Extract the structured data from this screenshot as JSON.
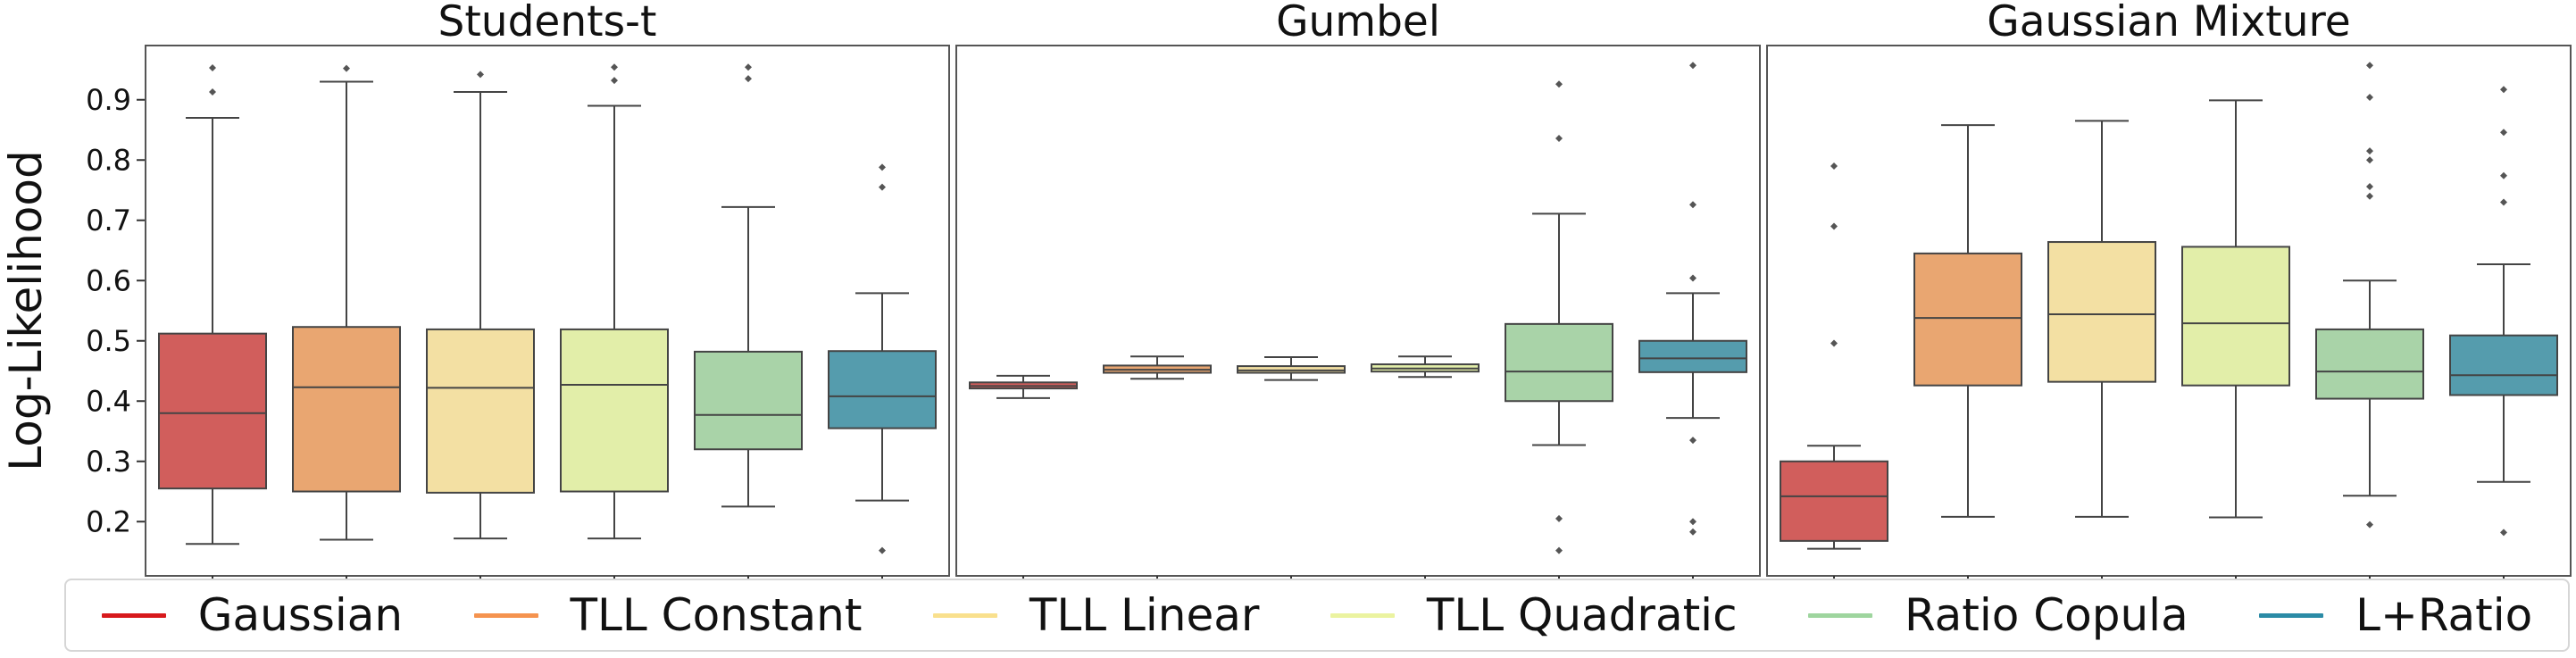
{
  "chart_data": {
    "type": "box",
    "ylabel": "Log-Likelihood",
    "ylim": [
      0.11,
      0.99
    ],
    "yticks": [
      0.2,
      0.3,
      0.4,
      0.5,
      0.6,
      0.7,
      0.8,
      0.9
    ],
    "legend_position": "bottom",
    "series": [
      {
        "name": "Gaussian",
        "color": "#d7191c"
      },
      {
        "name": "TLL Constant",
        "color": "#f5934f"
      },
      {
        "name": "TLL Linear",
        "color": "#f9e08d"
      },
      {
        "name": "TLL Quadratic",
        "color": "#ebf3a0"
      },
      {
        "name": "Ratio Copula",
        "color": "#9ed59e"
      },
      {
        "name": "L+Ratio",
        "color": "#2b8ba6"
      }
    ],
    "box_fill_colors": [
      "#d15e5c",
      "#e9a671",
      "#f3e0a3",
      "#e2eea9",
      "#a9d3a8",
      "#559cad"
    ],
    "panels": [
      {
        "title": "Students-t",
        "boxes": [
          {
            "q1": 0.255,
            "median": 0.38,
            "q3": 0.512,
            "whisker_low": 0.163,
            "whisker_high": 0.87,
            "outliers": [
              0.913,
              0.953
            ]
          },
          {
            "q1": 0.25,
            "median": 0.423,
            "q3": 0.523,
            "whisker_low": 0.17,
            "whisker_high": 0.93,
            "outliers": [
              0.952
            ]
          },
          {
            "q1": 0.248,
            "median": 0.422,
            "q3": 0.519,
            "whisker_low": 0.172,
            "whisker_high": 0.913,
            "outliers": [
              0.942
            ]
          },
          {
            "q1": 0.25,
            "median": 0.427,
            "q3": 0.519,
            "whisker_low": 0.172,
            "whisker_high": 0.89,
            "outliers": [
              0.932,
              0.954
            ]
          },
          {
            "q1": 0.32,
            "median": 0.377,
            "q3": 0.482,
            "whisker_low": 0.225,
            "whisker_high": 0.722,
            "outliers": [
              0.935,
              0.954
            ]
          },
          {
            "q1": 0.355,
            "median": 0.408,
            "q3": 0.483,
            "whisker_low": 0.235,
            "whisker_high": 0.579,
            "outliers": [
              0.152,
              0.755,
              0.788
            ]
          }
        ]
      },
      {
        "title": "Gumbel",
        "boxes": [
          {
            "q1": 0.421,
            "median": 0.425,
            "q3": 0.431,
            "whisker_low": 0.405,
            "whisker_high": 0.442,
            "outliers": []
          },
          {
            "q1": 0.447,
            "median": 0.452,
            "q3": 0.459,
            "whisker_low": 0.437,
            "whisker_high": 0.474,
            "outliers": []
          },
          {
            "q1": 0.447,
            "median": 0.451,
            "q3": 0.458,
            "whisker_low": 0.435,
            "whisker_high": 0.473,
            "outliers": []
          },
          {
            "q1": 0.449,
            "median": 0.454,
            "q3": 0.461,
            "whisker_low": 0.44,
            "whisker_high": 0.474,
            "outliers": []
          },
          {
            "q1": 0.4,
            "median": 0.449,
            "q3": 0.528,
            "whisker_low": 0.327,
            "whisker_high": 0.711,
            "outliers": [
              0.152,
              0.205,
              0.836,
              0.926
            ]
          },
          {
            "q1": 0.448,
            "median": 0.471,
            "q3": 0.5,
            "whisker_low": 0.372,
            "whisker_high": 0.579,
            "outliers": [
              0.183,
              0.2,
              0.335,
              0.604,
              0.726,
              0.957
            ]
          }
        ]
      },
      {
        "title": "Gaussian Mixture",
        "boxes": [
          {
            "q1": 0.168,
            "median": 0.242,
            "q3": 0.3,
            "whisker_low": 0.155,
            "whisker_high": 0.326,
            "outliers": [
              0.496,
              0.69,
              0.79
            ]
          },
          {
            "q1": 0.426,
            "median": 0.538,
            "q3": 0.645,
            "whisker_low": 0.208,
            "whisker_high": 0.858,
            "outliers": []
          },
          {
            "q1": 0.432,
            "median": 0.544,
            "q3": 0.664,
            "whisker_low": 0.208,
            "whisker_high": 0.865,
            "outliers": []
          },
          {
            "q1": 0.426,
            "median": 0.529,
            "q3": 0.656,
            "whisker_low": 0.207,
            "whisker_high": 0.899,
            "outliers": []
          },
          {
            "q1": 0.404,
            "median": 0.449,
            "q3": 0.519,
            "whisker_low": 0.243,
            "whisker_high": 0.6,
            "outliers": [
              0.195,
              0.74,
              0.756,
              0.8,
              0.815,
              0.904,
              0.957
            ]
          },
          {
            "q1": 0.41,
            "median": 0.443,
            "q3": 0.509,
            "whisker_low": 0.266,
            "whisker_high": 0.627,
            "outliers": [
              0.182,
              0.73,
              0.774,
              0.846,
              0.917
            ]
          }
        ]
      }
    ]
  }
}
